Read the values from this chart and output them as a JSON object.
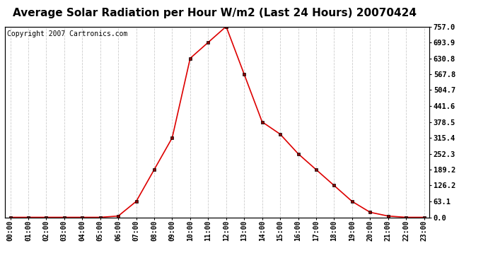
{
  "title": "Average Solar Radiation per Hour W/m2 (Last 24 Hours) 20070424",
  "copyright_text": "Copyright 2007 Cartronics.com",
  "hours": [
    "00:00",
    "01:00",
    "02:00",
    "03:00",
    "04:00",
    "05:00",
    "06:00",
    "07:00",
    "08:00",
    "09:00",
    "10:00",
    "11:00",
    "12:00",
    "13:00",
    "14:00",
    "15:00",
    "16:00",
    "17:00",
    "18:00",
    "19:00",
    "20:00",
    "21:00",
    "22:00",
    "23:00"
  ],
  "values": [
    0.0,
    0.0,
    0.0,
    0.0,
    0.0,
    0.0,
    5.0,
    63.1,
    189.2,
    315.4,
    630.8,
    693.9,
    757.0,
    567.8,
    378.5,
    330.0,
    252.3,
    189.2,
    126.2,
    63.1,
    20.0,
    5.0,
    0.0,
    0.0
  ],
  "line_color": "#dd0000",
  "bg_color": "#ffffff",
  "grid_color": "#cccccc",
  "yticks": [
    0.0,
    63.1,
    126.2,
    189.2,
    252.3,
    315.4,
    378.5,
    441.6,
    504.7,
    567.8,
    630.8,
    693.9,
    757.0
  ],
  "ymax": 757.0,
  "title_fontsize": 11,
  "copyright_fontsize": 7
}
